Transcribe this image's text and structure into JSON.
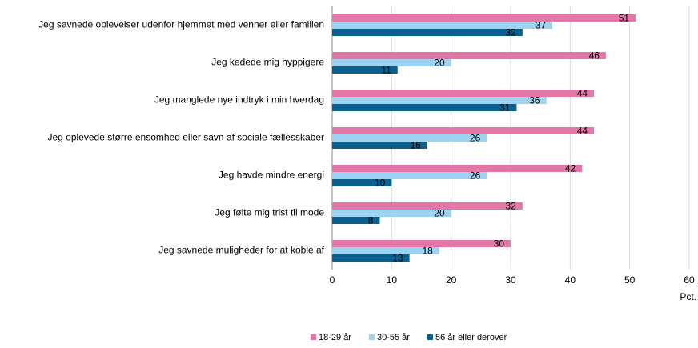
{
  "chart_data": {
    "type": "hbar",
    "categories": [
      "Jeg savnede oplevelser udenfor hjemmet med venner eller familien",
      "Jeg kedede mig hyppigere",
      "Jeg manglede nye indtryk i min hverdag",
      "Jeg oplevede større ensomhed eller savn af sociale fællesskaber",
      "Jeg havde mindre energi",
      "Jeg følte mig trist til mode",
      "Jeg savnede muligheder for at koble af"
    ],
    "series": [
      {
        "name": "18-29 år",
        "color": "#e377a8",
        "values": [
          51,
          46,
          44,
          44,
          42,
          32,
          30
        ]
      },
      {
        "name": "30-55 år",
        "color": "#9dd3f0",
        "values": [
          37,
          20,
          36,
          26,
          26,
          20,
          18
        ]
      },
      {
        "name": "56 år eller derover",
        "color": "#0a5f8c",
        "values": [
          32,
          11,
          31,
          16,
          10,
          8,
          13
        ]
      }
    ],
    "xlabel": "Pct.",
    "xlim": [
      0,
      60
    ],
    "xticks": [
      0,
      10,
      20,
      30,
      40,
      50,
      60
    ],
    "grid": true,
    "legend": "bottom"
  }
}
